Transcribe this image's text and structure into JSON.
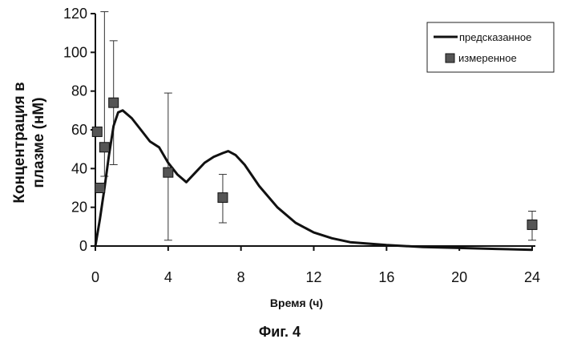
{
  "chart_data": {
    "type": "line",
    "title": "",
    "xlabel": "Время (ч)",
    "ylabel_line1": "Концентрация в",
    "ylabel_line2": "плазме (нМ)",
    "caption": "Фиг. 4",
    "xlim": [
      0,
      24
    ],
    "ylim": [
      0,
      120
    ],
    "x_ticks": [
      "0",
      "4",
      "8",
      "12",
      "16",
      "20",
      "24"
    ],
    "y_ticks": [
      "0",
      "20",
      "40",
      "60",
      "80",
      "100",
      "120"
    ],
    "legend_position": "top-right",
    "grid": false,
    "series": [
      {
        "name": "предсказанное",
        "kind": "line",
        "color": "#111111",
        "x": [
          0,
          0.25,
          0.5,
          0.75,
          1.0,
          1.25,
          1.5,
          2,
          2.5,
          3,
          3.5,
          4,
          4.5,
          5,
          5.5,
          6,
          6.5,
          7,
          7.3,
          7.7,
          8.2,
          9,
          10,
          11,
          12,
          13,
          14,
          16,
          18,
          20,
          22,
          24
        ],
        "y": [
          0,
          14,
          30,
          47,
          62,
          69,
          70,
          66,
          60,
          54,
          51,
          43,
          37,
          33,
          38,
          43,
          46,
          48,
          49,
          47,
          42,
          31,
          20,
          12,
          7,
          4,
          2,
          0.5,
          -0.5,
          -1,
          -1.5,
          -2
        ]
      },
      {
        "name": "измеренное",
        "kind": "scatter_errorbar",
        "color": "#555555",
        "points": [
          {
            "x": 0.1,
            "y": 59
          },
          {
            "x": 0.25,
            "y": 30
          },
          {
            "x": 0.5,
            "y": 51,
            "low": 36,
            "high": 121
          },
          {
            "x": 1.0,
            "y": 74,
            "low": 42,
            "high": 106
          },
          {
            "x": 4.0,
            "y": 38,
            "low": 3,
            "high": 79
          },
          {
            "x": 7.0,
            "y": 25,
            "low": 12,
            "high": 37
          },
          {
            "x": 24.0,
            "y": 11,
            "low": 3,
            "high": 18
          }
        ]
      }
    ]
  }
}
